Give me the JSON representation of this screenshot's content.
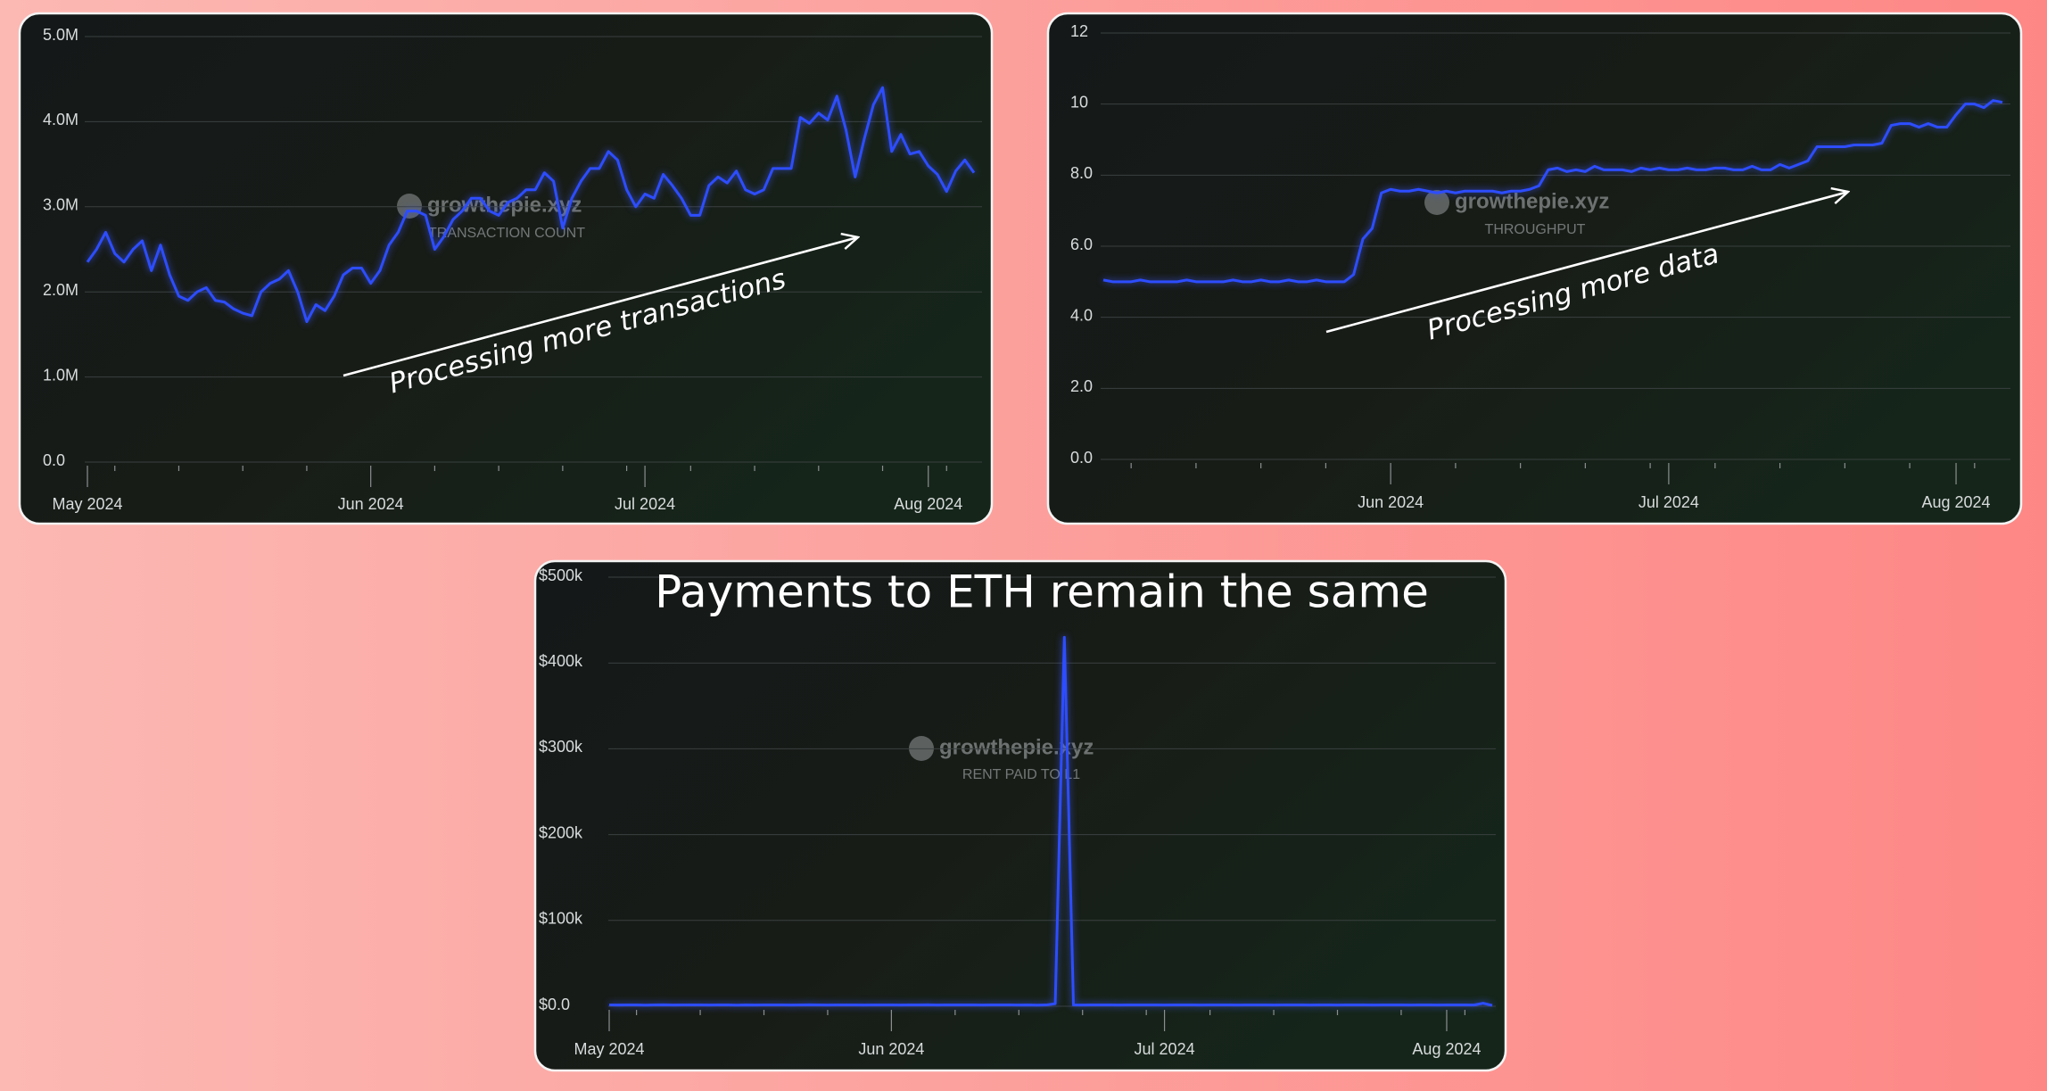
{
  "chart_data": [
    {
      "type": "line",
      "subtitle": "TRANSACTION COUNT",
      "watermark": "growthepie.xyz",
      "annotation": "Processing more transactions",
      "categories": [
        "May 2024",
        null,
        null,
        null,
        null,
        null,
        null,
        null,
        null,
        null,
        null,
        null,
        null,
        null,
        null,
        null,
        null,
        null,
        null,
        null,
        null,
        null,
        null,
        null,
        null,
        null,
        null,
        null,
        null,
        null,
        null,
        "Jun 2024",
        null,
        null,
        null,
        null,
        null,
        null,
        null,
        null,
        null,
        null,
        null,
        null,
        null,
        null,
        null,
        null,
        null,
        null,
        null,
        null,
        null,
        null,
        null,
        null,
        null,
        null,
        null,
        null,
        null,
        "Jul 2024",
        null,
        null,
        null,
        null,
        null,
        null,
        null,
        null,
        null,
        null,
        null,
        null,
        null,
        null,
        null,
        null,
        null,
        null,
        null,
        null,
        null,
        null,
        null,
        null,
        null,
        null,
        null,
        null,
        null,
        null,
        "Aug 2024",
        null,
        null,
        null,
        null,
        null
      ],
      "values": [
        2.35,
        2.5,
        2.7,
        2.45,
        2.35,
        2.5,
        2.6,
        2.25,
        2.55,
        2.2,
        1.95,
        1.9,
        2.0,
        2.05,
        1.9,
        1.88,
        1.8,
        1.75,
        1.72,
        2.0,
        2.1,
        2.15,
        2.25,
        2.0,
        1.65,
        1.85,
        1.78,
        1.95,
        2.2,
        2.28,
        2.28,
        2.1,
        2.25,
        2.55,
        2.7,
        2.95,
        2.95,
        2.9,
        2.5,
        2.65,
        2.85,
        2.95,
        3.1,
        3.1,
        2.95,
        2.9,
        3.05,
        3.1,
        3.2,
        3.2,
        3.4,
        3.3,
        2.75,
        3.1,
        3.3,
        3.45,
        3.45,
        3.65,
        3.55,
        3.2,
        3.0,
        3.15,
        3.1,
        3.38,
        3.25,
        3.1,
        2.9,
        2.9,
        3.25,
        3.35,
        3.28,
        3.42,
        3.2,
        3.15,
        3.2,
        3.45,
        3.45,
        3.45,
        4.05,
        3.98,
        4.1,
        4.02,
        4.3,
        3.9,
        3.35,
        3.8,
        4.2,
        4.4,
        3.65,
        3.85,
        3.62,
        3.65,
        3.48,
        3.38,
        3.18,
        3.42,
        3.55,
        3.4
      ],
      "color": "#2d4dff",
      "ylim": [
        0,
        5
      ],
      "yticks": [
        {
          "value": 0,
          "label": "0.0"
        },
        {
          "value": 1,
          "label": "1.0M"
        },
        {
          "value": 2,
          "label": "2.0M"
        },
        {
          "value": 3,
          "label": "3.0M"
        },
        {
          "value": 4,
          "label": "4.0M"
        },
        {
          "value": 5,
          "label": "5.0M"
        }
      ],
      "grid": true
    },
    {
      "type": "line",
      "subtitle": "THROUGHPUT",
      "watermark": "growthepie.xyz",
      "annotation": "Processing more data",
      "categories": [
        null,
        null,
        null,
        null,
        null,
        null,
        null,
        null,
        null,
        null,
        null,
        null,
        null,
        null,
        null,
        null,
        null,
        null,
        null,
        null,
        null,
        null,
        null,
        null,
        null,
        null,
        null,
        null,
        null,
        null,
        null,
        "Jun 2024",
        null,
        null,
        null,
        null,
        null,
        null,
        null,
        null,
        null,
        null,
        null,
        null,
        null,
        null,
        null,
        null,
        null,
        null,
        null,
        null,
        null,
        null,
        null,
        null,
        null,
        null,
        null,
        null,
        null,
        "Jul 2024",
        null,
        null,
        null,
        null,
        null,
        null,
        null,
        null,
        null,
        null,
        null,
        null,
        null,
        null,
        null,
        null,
        null,
        null,
        null,
        null,
        null,
        null,
        null,
        null,
        null,
        null,
        null,
        null,
        null,
        null,
        "Aug 2024",
        null,
        null,
        null,
        null,
        null
      ],
      "values": [
        5.05,
        5.0,
        5.0,
        5.0,
        5.05,
        5.0,
        5.0,
        5.0,
        5.0,
        5.05,
        5.0,
        5.0,
        5.0,
        5.0,
        5.05,
        5.0,
        5.0,
        5.05,
        5.0,
        5.0,
        5.05,
        5.0,
        5.0,
        5.05,
        5.0,
        5.0,
        5.0,
        5.2,
        6.2,
        6.5,
        7.5,
        7.6,
        7.55,
        7.55,
        7.6,
        7.55,
        7.5,
        7.55,
        7.5,
        7.55,
        7.55,
        7.55,
        7.55,
        7.5,
        7.55,
        7.55,
        7.6,
        7.7,
        8.15,
        8.2,
        8.1,
        8.15,
        8.1,
        8.25,
        8.15,
        8.15,
        8.15,
        8.1,
        8.2,
        8.15,
        8.2,
        8.15,
        8.15,
        8.2,
        8.15,
        8.15,
        8.2,
        8.2,
        8.15,
        8.15,
        8.25,
        8.15,
        8.15,
        8.3,
        8.2,
        8.3,
        8.4,
        8.8,
        8.8,
        8.8,
        8.8,
        8.85,
        8.85,
        8.85,
        8.9,
        9.4,
        9.45,
        9.45,
        9.35,
        9.45,
        9.35,
        9.35,
        9.7,
        10.0,
        10.0,
        9.9,
        10.1,
        10.05
      ],
      "color": "#2d4dff",
      "ylim": [
        0,
        12
      ],
      "yticks": [
        {
          "value": 0,
          "label": "0.0"
        },
        {
          "value": 2,
          "label": "2.0"
        },
        {
          "value": 4,
          "label": "4.0"
        },
        {
          "value": 6,
          "label": "6.0"
        },
        {
          "value": 8,
          "label": "8.0"
        },
        10,
        12
      ],
      "grid": true
    },
    {
      "type": "line",
      "title": "Payments to ETH remain the same",
      "subtitle": "RENT PAID TO L1",
      "watermark": "growthepie.xyz",
      "categories": [
        "May 2024",
        null,
        null,
        null,
        null,
        null,
        null,
        null,
        null,
        null,
        null,
        null,
        null,
        null,
        null,
        null,
        null,
        null,
        null,
        null,
        null,
        null,
        null,
        null,
        null,
        null,
        null,
        null,
        null,
        null,
        null,
        "Jun 2024",
        null,
        null,
        null,
        null,
        null,
        null,
        null,
        null,
        null,
        null,
        null,
        null,
        null,
        null,
        null,
        null,
        null,
        null,
        null,
        null,
        null,
        null,
        null,
        null,
        null,
        null,
        null,
        null,
        null,
        "Jul 2024",
        null,
        null,
        null,
        null,
        null,
        null,
        null,
        null,
        null,
        null,
        null,
        null,
        null,
        null,
        null,
        null,
        null,
        null,
        null,
        null,
        null,
        null,
        null,
        null,
        null,
        null,
        null,
        null,
        null,
        null,
        "Aug 2024",
        null,
        null,
        null,
        null,
        null
      ],
      "values": [
        1500,
        1400,
        1600,
        1500,
        1300,
        1500,
        1700,
        1400,
        1500,
        1600,
        1500,
        1400,
        1500,
        1600,
        1300,
        1500,
        1400,
        1500,
        1600,
        1500,
        1400,
        1500,
        1700,
        1500,
        1400,
        1500,
        1600,
        1500,
        1400,
        1500,
        1500,
        1600,
        1400,
        1500,
        1500,
        1700,
        1400,
        1500,
        1600,
        1500,
        1500,
        1400,
        1500,
        1600,
        1500,
        1400,
        1500,
        1300,
        1500,
        3000,
        430000,
        1500,
        1400,
        1500,
        1600,
        1500,
        1400,
        1500,
        1600,
        1500,
        1500,
        1400,
        1500,
        1600,
        1500,
        1400,
        1500,
        1500,
        1600,
        1400,
        1500,
        1600,
        1500,
        1400,
        1500,
        1500,
        1600,
        1400,
        1500,
        1500,
        1400,
        1500,
        1600,
        1500,
        1400,
        1500,
        1500,
        1600,
        1400,
        1500,
        1500,
        1400,
        1500,
        1600,
        1500,
        1400,
        3500,
        1000
      ],
      "color": "#2d4dff",
      "ylim": [
        0,
        500000
      ],
      "yticks": [
        {
          "value": 0,
          "label": "$0.0"
        },
        {
          "value": 100000,
          "label": "$100k"
        },
        {
          "value": 200000,
          "label": "$200k"
        },
        {
          "value": 300000,
          "label": "$300k"
        },
        {
          "value": 400000,
          "label": "$400k"
        },
        {
          "value": 500000,
          "label": "$500k"
        }
      ],
      "grid": true
    }
  ]
}
